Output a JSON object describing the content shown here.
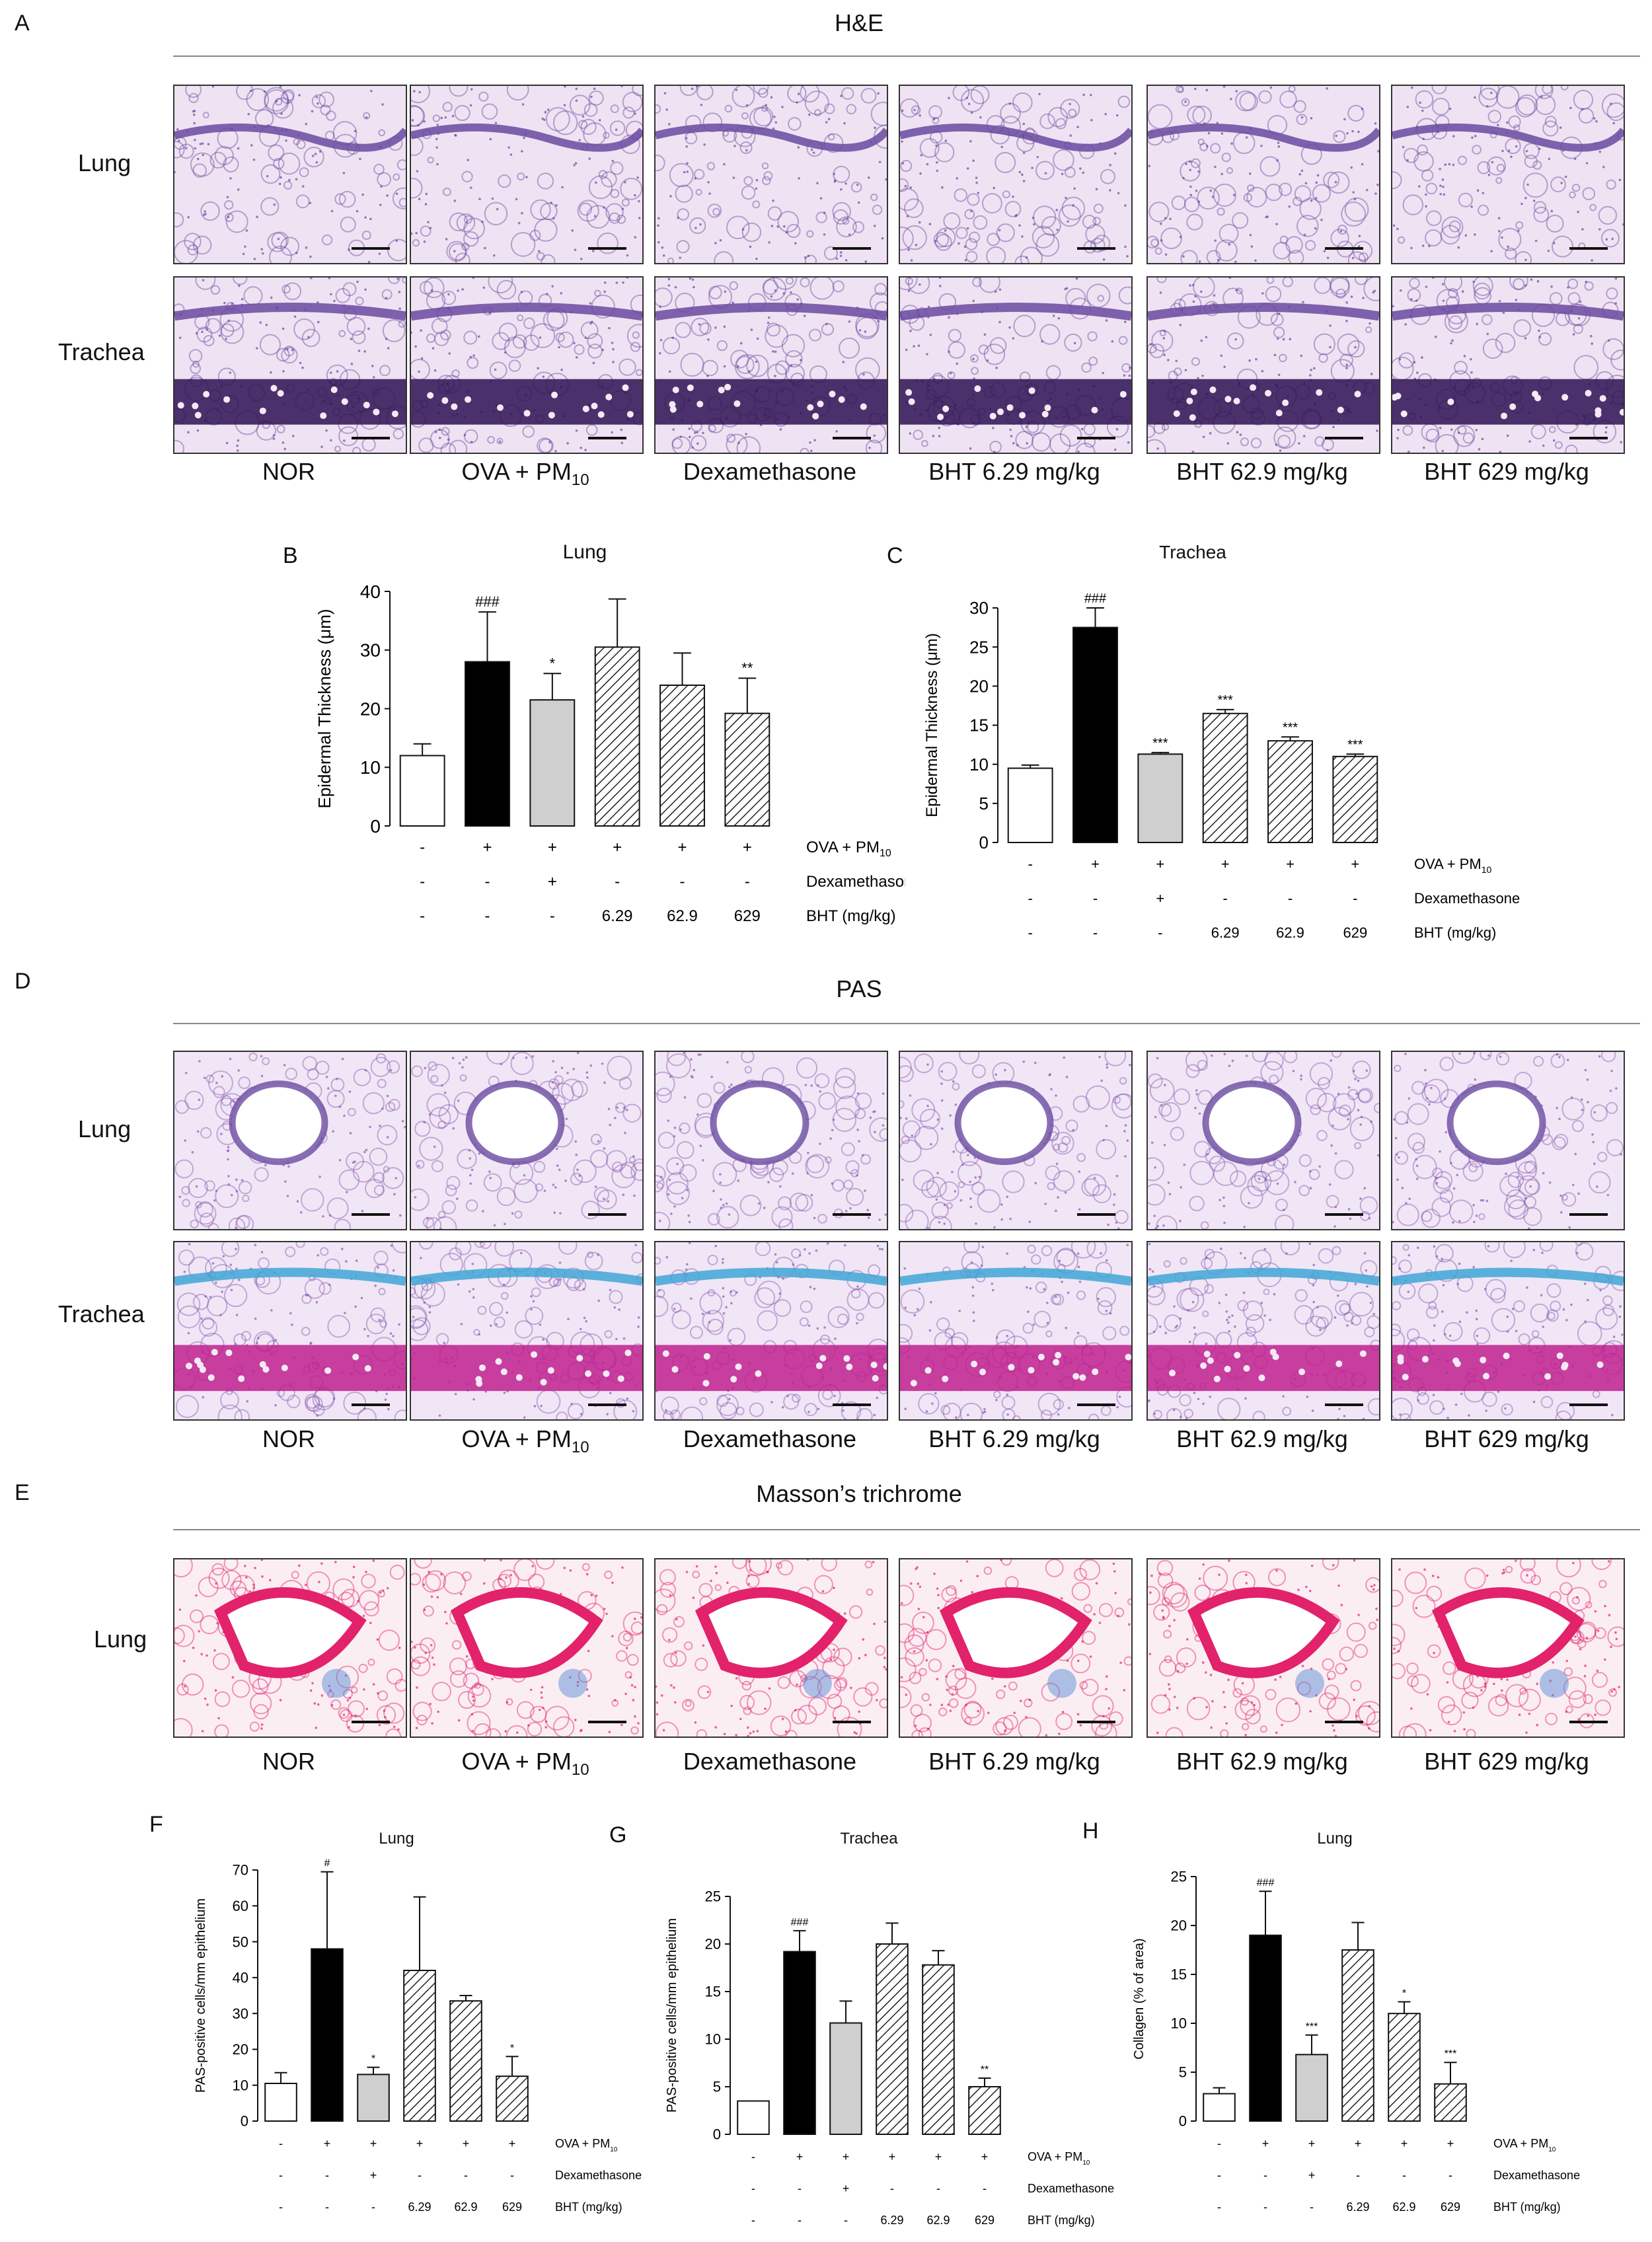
{
  "panels": {
    "A": {
      "letter": "A",
      "title": "H&E"
    },
    "D": {
      "letter": "D",
      "title": "PAS"
    },
    "E": {
      "letter": "E",
      "title": "Masson’s trichrome"
    },
    "B": {
      "letter": "B"
    },
    "C": {
      "letter": "C"
    },
    "F": {
      "letter": "F"
    },
    "G": {
      "letter": "G"
    },
    "H": {
      "letter": "H"
    }
  },
  "row_labels": {
    "lung": "Lung",
    "trachea": "Trachea"
  },
  "groups": [
    "NOR",
    "OVA + PM",
    "Dexamethasone",
    "BHT 6.29 mg/kg",
    "BHT 62.9 mg/kg",
    "BHT 629 mg/kg"
  ],
  "group_sub": "10",
  "colors": {
    "he_bg": "#efe3f3",
    "he_stain": "#6a4aa0",
    "he_dark": "#2e1252",
    "pas_bg": "#f1e6f6",
    "pas_blue": "#3fa6d6",
    "pas_magenta": "#c0208e",
    "mt_bg": "#fbeef3",
    "mt_red": "#e2226b",
    "mt_blue": "#5d8ed6"
  },
  "condition_rows": [
    {
      "label": "OVA + PM",
      "sub": "10",
      "values": [
        "-",
        "+",
        "+",
        "+",
        "+",
        "+"
      ]
    },
    {
      "label": "Dexamethasone",
      "sub": "",
      "values": [
        "-",
        "-",
        "+",
        "-",
        "-",
        "-"
      ]
    },
    {
      "label": "BHT (mg/kg)",
      "sub": "",
      "values": [
        "-",
        "-",
        "-",
        "6.29",
        "62.9",
        "629"
      ]
    }
  ],
  "chart_data": [
    {
      "id": "B",
      "type": "bar",
      "title": "Lung",
      "ylabel": "Epidermal Thickness (μm)",
      "ylim": [
        0,
        40
      ],
      "yticks": [
        0,
        10,
        20,
        30,
        40
      ],
      "values": [
        12,
        28,
        21.5,
        30.5,
        24,
        19.2
      ],
      "errors": [
        2,
        8.5,
        4.5,
        8.2,
        5.5,
        6
      ],
      "sig": [
        "",
        "###",
        "*",
        "",
        "",
        "**"
      ]
    },
    {
      "id": "C",
      "type": "bar",
      "title": "Trachea",
      "ylabel": "Epidermal Thickness (μm)",
      "ylim": [
        0,
        30
      ],
      "yticks": [
        0,
        5,
        10,
        15,
        20,
        25,
        30
      ],
      "values": [
        9.5,
        27.5,
        11.3,
        16.5,
        13,
        11
      ],
      "errors": [
        0.4,
        2.5,
        0.2,
        0.5,
        0.5,
        0.3
      ],
      "sig": [
        "",
        "###",
        "***",
        "***",
        "***",
        "***"
      ]
    },
    {
      "id": "F",
      "type": "bar",
      "title": "Lung",
      "ylabel": "PAS-positive cells/mm epithelium",
      "ylim": [
        0,
        70
      ],
      "yticks": [
        0,
        10,
        20,
        30,
        40,
        50,
        60,
        70
      ],
      "values": [
        10.5,
        48,
        13,
        42,
        33.5,
        12.5
      ],
      "errors": [
        3,
        21.5,
        2,
        20.5,
        1.5,
        5.5
      ],
      "sig": [
        "",
        "#",
        "*",
        "",
        "",
        "*"
      ]
    },
    {
      "id": "G",
      "type": "bar",
      "title": "Trachea",
      "ylabel": "PAS-positive cells/mm epithelium",
      "ylim": [
        0,
        25
      ],
      "yticks": [
        0,
        5,
        10,
        15,
        20,
        25
      ],
      "values": [
        3.5,
        19.2,
        11.7,
        20,
        17.8,
        5
      ],
      "errors": [
        0,
        2.2,
        2.3,
        2.2,
        1.5,
        0.9
      ],
      "sig": [
        "",
        "###",
        "",
        "",
        "",
        "**"
      ]
    },
    {
      "id": "H",
      "type": "bar",
      "title": "Lung",
      "ylabel": "Collagen (% of area)",
      "ylim": [
        0,
        25
      ],
      "yticks": [
        0,
        5,
        10,
        15,
        20,
        25
      ],
      "values": [
        2.8,
        19,
        6.8,
        17.5,
        11,
        3.8
      ],
      "errors": [
        0.6,
        4.5,
        2,
        2.8,
        1.2,
        2.2
      ],
      "sig": [
        "",
        "###",
        "***",
        "",
        "*",
        "***"
      ]
    }
  ]
}
